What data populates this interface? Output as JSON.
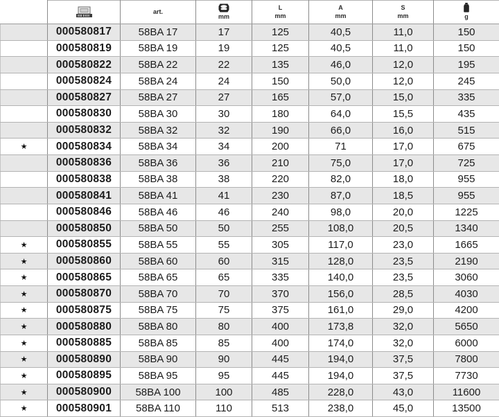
{
  "table": {
    "star_glyph": "★",
    "columns": {
      "star": {
        "label": ""
      },
      "ean": {
        "icon": "barcode-icon"
      },
      "art": {
        "label": "art."
      },
      "size": {
        "icon": "nut-icon",
        "unit": "mm"
      },
      "length": {
        "label": "L",
        "unit": "mm"
      },
      "a": {
        "label": "A",
        "unit": "mm"
      },
      "s": {
        "label": "S",
        "unit": "mm"
      },
      "weight": {
        "icon": "weight-icon",
        "unit": "g"
      }
    },
    "rows": [
      {
        "star": false,
        "ean": "000580817",
        "art": "58BA 17",
        "size_mm": "17",
        "l_mm": "125",
        "a_mm": "40,5",
        "s_mm": "11,0",
        "weight_g": "150"
      },
      {
        "star": false,
        "ean": "000580819",
        "art": "58BA 19",
        "size_mm": "19",
        "l_mm": "125",
        "a_mm": "40,5",
        "s_mm": "11,0",
        "weight_g": "150"
      },
      {
        "star": false,
        "ean": "000580822",
        "art": "58BA 22",
        "size_mm": "22",
        "l_mm": "135",
        "a_mm": "46,0",
        "s_mm": "12,0",
        "weight_g": "195"
      },
      {
        "star": false,
        "ean": "000580824",
        "art": "58BA 24",
        "size_mm": "24",
        "l_mm": "150",
        "a_mm": "50,0",
        "s_mm": "12,0",
        "weight_g": "245"
      },
      {
        "star": false,
        "ean": "000580827",
        "art": "58BA 27",
        "size_mm": "27",
        "l_mm": "165",
        "a_mm": "57,0",
        "s_mm": "15,0",
        "weight_g": "335"
      },
      {
        "star": false,
        "ean": "000580830",
        "art": "58BA 30",
        "size_mm": "30",
        "l_mm": "180",
        "a_mm": "64,0",
        "s_mm": "15,5",
        "weight_g": "435"
      },
      {
        "star": false,
        "ean": "000580832",
        "art": "58BA 32",
        "size_mm": "32",
        "l_mm": "190",
        "a_mm": "66,0",
        "s_mm": "16,0",
        "weight_g": "515"
      },
      {
        "star": true,
        "ean": "000580834",
        "art": "58BA 34",
        "size_mm": "34",
        "l_mm": "200",
        "a_mm": "71",
        "s_mm": "17,0",
        "weight_g": "675"
      },
      {
        "star": false,
        "ean": "000580836",
        "art": "58BA 36",
        "size_mm": "36",
        "l_mm": "210",
        "a_mm": "75,0",
        "s_mm": "17,0",
        "weight_g": "725"
      },
      {
        "star": false,
        "ean": "000580838",
        "art": "58BA 38",
        "size_mm": "38",
        "l_mm": "220",
        "a_mm": "82,0",
        "s_mm": "18,0",
        "weight_g": "955"
      },
      {
        "star": false,
        "ean": "000580841",
        "art": "58BA 41",
        "size_mm": "41",
        "l_mm": "230",
        "a_mm": "87,0",
        "s_mm": "18,5",
        "weight_g": "955"
      },
      {
        "star": false,
        "ean": "000580846",
        "art": "58BA 46",
        "size_mm": "46",
        "l_mm": "240",
        "a_mm": "98,0",
        "s_mm": "20,0",
        "weight_g": "1225"
      },
      {
        "star": false,
        "ean": "000580850",
        "art": "58BA 50",
        "size_mm": "50",
        "l_mm": "255",
        "a_mm": "108,0",
        "s_mm": "20,5",
        "weight_g": "1340"
      },
      {
        "star": true,
        "ean": "000580855",
        "art": "58BA 55",
        "size_mm": "55",
        "l_mm": "305",
        "a_mm": "117,0",
        "s_mm": "23,0",
        "weight_g": "1665"
      },
      {
        "star": true,
        "ean": "000580860",
        "art": "58BA 60",
        "size_mm": "60",
        "l_mm": "315",
        "a_mm": "128,0",
        "s_mm": "23,5",
        "weight_g": "2190"
      },
      {
        "star": true,
        "ean": "000580865",
        "art": "58BA 65",
        "size_mm": "65",
        "l_mm": "335",
        "a_mm": "140,0",
        "s_mm": "23,5",
        "weight_g": "3060"
      },
      {
        "star": true,
        "ean": "000580870",
        "art": "58BA 70",
        "size_mm": "70",
        "l_mm": "370",
        "a_mm": "156,0",
        "s_mm": "28,5",
        "weight_g": "4030"
      },
      {
        "star": true,
        "ean": "000580875",
        "art": "58BA 75",
        "size_mm": "75",
        "l_mm": "375",
        "a_mm": "161,0",
        "s_mm": "29,0",
        "weight_g": "4200"
      },
      {
        "star": true,
        "ean": "000580880",
        "art": "58BA 80",
        "size_mm": "80",
        "l_mm": "400",
        "a_mm": "173,8",
        "s_mm": "32,0",
        "weight_g": "5650"
      },
      {
        "star": true,
        "ean": "000580885",
        "art": "58BA 85",
        "size_mm": "85",
        "l_mm": "400",
        "a_mm": "174,0",
        "s_mm": "32,0",
        "weight_g": "6000"
      },
      {
        "star": true,
        "ean": "000580890",
        "art": "58BA 90",
        "size_mm": "90",
        "l_mm": "445",
        "a_mm": "194,0",
        "s_mm": "37,5",
        "weight_g": "7800"
      },
      {
        "star": true,
        "ean": "000580895",
        "art": "58BA 95",
        "size_mm": "95",
        "l_mm": "445",
        "a_mm": "194,0",
        "s_mm": "37,5",
        "weight_g": "7730"
      },
      {
        "star": true,
        "ean": "000580900",
        "art": "58BA 100",
        "size_mm": "100",
        "l_mm": "485",
        "a_mm": "228,0",
        "s_mm": "43,0",
        "weight_g": "11600"
      },
      {
        "star": true,
        "ean": "000580901",
        "art": "58BA 110",
        "size_mm": "110",
        "l_mm": "513",
        "a_mm": "238,0",
        "s_mm": "45,0",
        "weight_g": "13500"
      }
    ]
  }
}
